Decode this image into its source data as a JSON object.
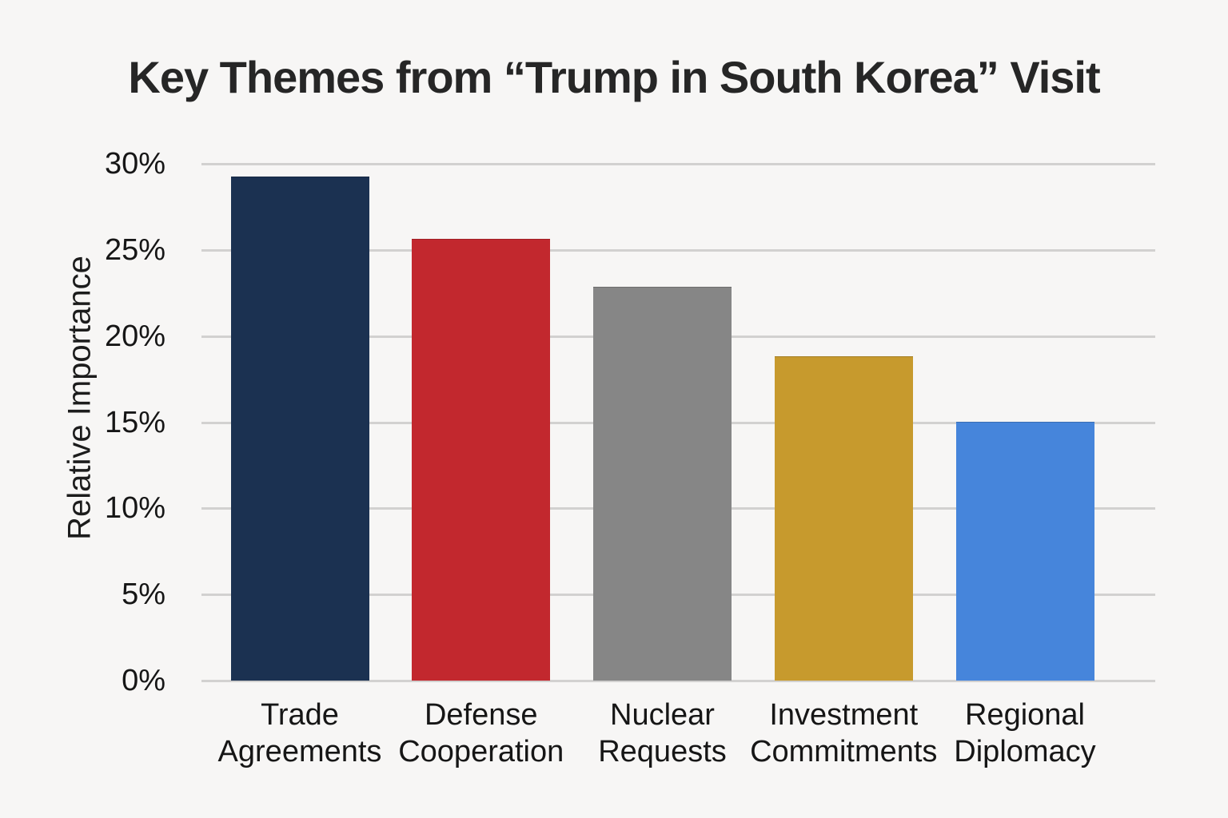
{
  "page": {
    "background_color": "#f7f6f5",
    "text_color": "#161616",
    "gridline_color": "#d2d1d0"
  },
  "chart_data": {
    "type": "bar",
    "title": "Key Themes from “Trump in South Korea” Visit",
    "xlabel": "",
    "ylabel": "Relative Importance",
    "categories": [
      "Trade Agreements",
      "Defense Cooperation",
      "Nuclear Requests",
      "Investment Commitments",
      "Regional Diplomacy"
    ],
    "category_lines": [
      [
        "Trade",
        "Agreements"
      ],
      [
        "Defense",
        "Cooperation"
      ],
      [
        "Nuclear",
        "Requests"
      ],
      [
        "Investment",
        "Commitments"
      ],
      [
        "Regional",
        "Diplomacy"
      ]
    ],
    "values": [
      29.2,
      25.6,
      22.8,
      18.8,
      15.0
    ],
    "unit": "%",
    "bar_colors": [
      "#1b3151",
      "#c2282e",
      "#868686",
      "#c79a2d",
      "#4685db"
    ],
    "ylim": [
      0,
      30
    ],
    "ytick_values": [
      0,
      5,
      10,
      15,
      20,
      25,
      30
    ],
    "ytick_labels": [
      "0%",
      "5%",
      "10%",
      "15%",
      "20%",
      "25%",
      "30%"
    ],
    "grid": "horizontal",
    "legend": "none"
  }
}
